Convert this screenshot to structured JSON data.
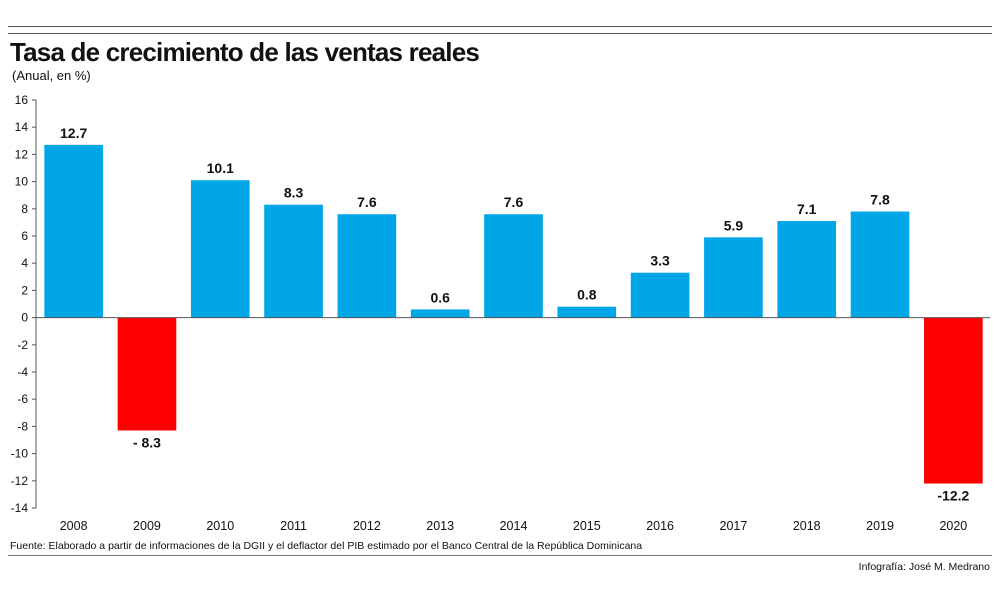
{
  "header": {
    "title": "Tasa de crecimiento de las ventas reales",
    "subtitle": "(Anual, en %)"
  },
  "footer": {
    "source": "Fuente: Elaborado a partir de informaciones de la DGII y el deflactor del PIB estimado por el Banco Central de la República Dominicana",
    "credit": "Infografía: José M. Medrano"
  },
  "colors": {
    "positive": "#00a6e6",
    "negative": "#ff0000",
    "axis": "#555555"
  },
  "chart_data": {
    "type": "bar",
    "title": "Tasa de crecimiento de las ventas reales",
    "subtitle": "(Anual, en %)",
    "categories": [
      "2008",
      "2009",
      "2010",
      "2011",
      "2012",
      "2013",
      "2014",
      "2015",
      "2016",
      "2017",
      "2018",
      "2019",
      "2020"
    ],
    "values": [
      12.7,
      -8.3,
      10.1,
      8.3,
      7.6,
      0.6,
      7.6,
      0.8,
      3.3,
      5.9,
      7.1,
      7.8,
      -12.2
    ],
    "value_labels": [
      "12.7",
      "- 8.3",
      "10.1",
      "8.3",
      "7.6",
      "0.6",
      "7.6",
      "0.8",
      "3.3",
      "5.9",
      "7.1",
      "7.8",
      "-12.2"
    ],
    "yticks": [
      "16",
      "14",
      "12",
      "10",
      "8",
      "6",
      "4",
      "2",
      "0",
      "-2",
      "-4",
      "-6",
      "-8",
      "-10",
      "-12",
      "-14"
    ],
    "ylim": [
      -14,
      16
    ],
    "xlabel": "",
    "ylabel": "",
    "grid": false,
    "legend": "none"
  }
}
